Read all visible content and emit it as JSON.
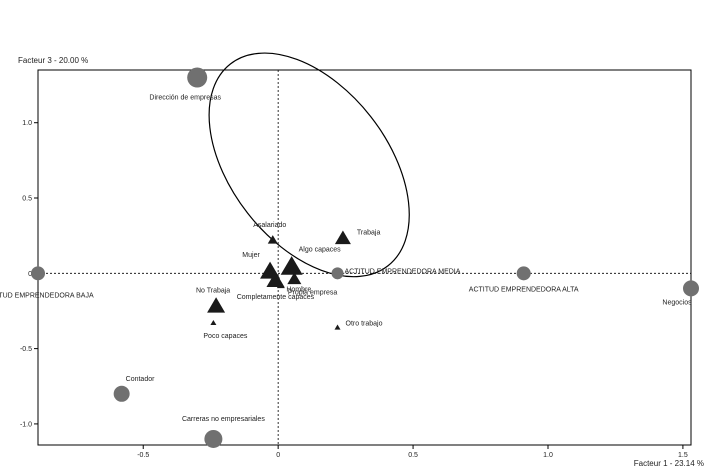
{
  "chart_data": {
    "type": "scatter",
    "xlabel": "Facteur 1  -  23.14 %",
    "ylabel": "Facteur 3  -  20.00 %",
    "xlim": [
      -0.89,
      1.53
    ],
    "ylim": [
      -1.14,
      1.35
    ],
    "x_ticks": [
      -0.5,
      0,
      0.5,
      1.0,
      1.5
    ],
    "x_tick_labels": [
      "-0.5",
      "0",
      "0.5",
      "1.0",
      "1.5"
    ],
    "y_ticks": [
      -1.0,
      -0.5,
      0,
      0.5,
      1.0
    ],
    "y_tick_labels": [
      "-1.0",
      "-0.5",
      "0",
      "0.5",
      "1.0"
    ],
    "grid": false,
    "colors": {
      "marker": "#707070",
      "frame": "#000000"
    },
    "points": [
      {
        "label": "Dirección de empresas",
        "x": -0.3,
        "y": 1.3,
        "shape": "circle",
        "size": 10
      },
      {
        "label": "ACTITUD EMPRENDEDORA BAJA",
        "x": -0.89,
        "y": 0.0,
        "shape": "circle",
        "size": 7
      },
      {
        "label": "Negocios",
        "x": 1.53,
        "y": -0.1,
        "shape": "circle",
        "size": 8
      },
      {
        "label": "ACTITUD EMPRENDEDORA ALTA",
        "x": 0.91,
        "y": 0.0,
        "shape": "circle",
        "size": 7
      },
      {
        "label": "ACTITUD EMPRENDEDORA MEDIA",
        "x": 0.22,
        "y": 0.0,
        "shape": "circle",
        "size": 6
      },
      {
        "label": "Contador",
        "x": -0.58,
        "y": -0.8,
        "shape": "circle",
        "size": 8
      },
      {
        "label": "Carreras no empresariales",
        "x": -0.24,
        "y": -1.1,
        "shape": "circle",
        "size": 9
      },
      {
        "label": "Trabaja",
        "x": 0.24,
        "y": 0.23,
        "shape": "triangle",
        "size": 8
      },
      {
        "label": "Asalariado",
        "x": -0.02,
        "y": 0.22,
        "shape": "triangle",
        "size": 5
      },
      {
        "label": "Mujer",
        "x": -0.03,
        "y": 0.01,
        "shape": "triangle",
        "size": 10
      },
      {
        "label": "Algo capaces",
        "x": 0.05,
        "y": 0.04,
        "shape": "triangle",
        "size": 11
      },
      {
        "label": "Completamente capaces",
        "x": -0.01,
        "y": -0.05,
        "shape": "triangle",
        "size": 9
      },
      {
        "label": "Hombre",
        "x": 0.06,
        "y": -0.04,
        "shape": "triangle",
        "size": 7
      },
      {
        "label": "Propia empresa",
        "x": 0.01,
        "y": -0.08,
        "shape": "triangle",
        "size": 4
      },
      {
        "label": "No Trabaja",
        "x": -0.23,
        "y": -0.22,
        "shape": "triangle",
        "size": 9
      },
      {
        "label": "Poco capaces",
        "x": -0.24,
        "y": -0.33,
        "shape": "triangle",
        "size": 3
      },
      {
        "label": "Otro trabajo",
        "x": 0.22,
        "y": -0.36,
        "shape": "triangle",
        "size": 3
      }
    ],
    "annotations": [
      {
        "type": "ellipse",
        "cx": 0.115,
        "cy": 0.72,
        "rx": 0.29,
        "ry": 0.85,
        "rotation_deg": -38
      }
    ]
  }
}
